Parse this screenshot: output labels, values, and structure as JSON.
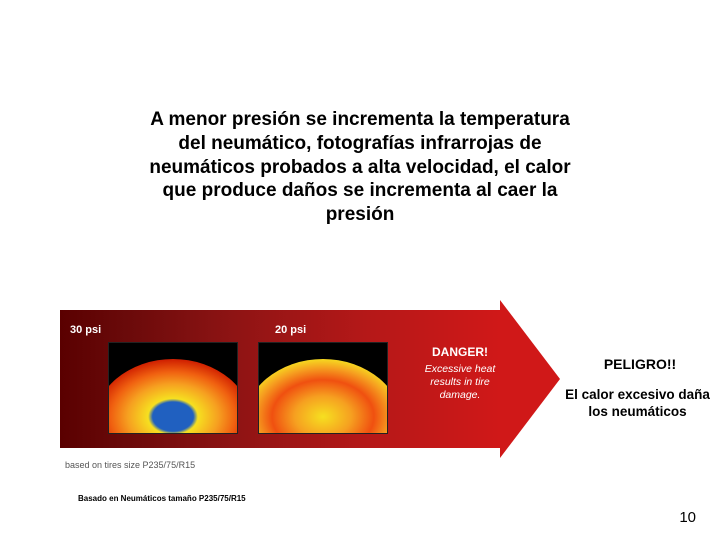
{
  "title": "A menor presión se incrementa la temperatura del neumático, fotografías infrarrojas de neumáticos probados a alta velocidad, el calor que produce daños se incrementa al caer la presión",
  "arrow": {
    "gradient_start": "#5a0000",
    "gradient_end": "#d01818",
    "psi_labels": {
      "left": "30 psi",
      "right": "20 psi"
    },
    "danger": {
      "title": "DANGER!",
      "line1": "Excessive heat",
      "line2": "results in tire",
      "line3": "damage."
    }
  },
  "thermal": {
    "cool_colors": [
      "#2060c0",
      "#f6e020",
      "#f6a020",
      "#f06010",
      "#d02000",
      "#103080"
    ],
    "hot_colors": [
      "#f6e020",
      "#f6a020",
      "#f05010",
      "#c02000"
    ]
  },
  "footnote_en": "based on tires size P235/75/R15",
  "footnote_es": "Basado en Neumáticos tamaño P235/75/R15",
  "side": {
    "peligro": "PELIGRO!!",
    "calor": "El calor excesivo daña los neumáticos"
  },
  "page_number": "10",
  "colors": {
    "background": "#ffffff",
    "text": "#000000",
    "white": "#ffffff"
  }
}
